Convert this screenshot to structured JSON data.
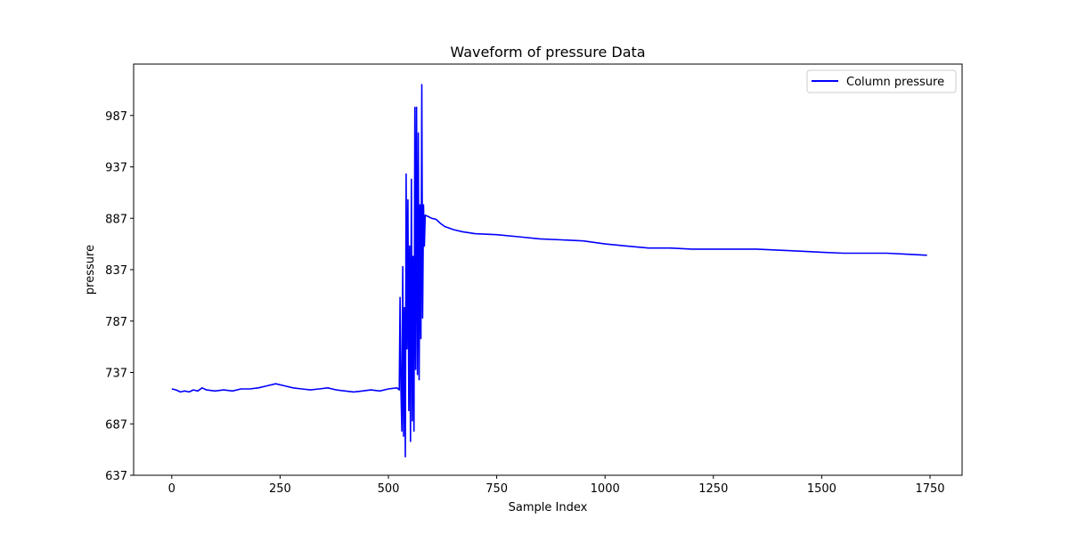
{
  "chart_data": {
    "type": "line",
    "title": "Waveform of pressure Data",
    "xlabel": "Sample Index",
    "ylabel": "pressure",
    "xlim": [
      -88,
      1824
    ],
    "ylim": [
      637,
      1037
    ],
    "xticks": [
      0,
      250,
      500,
      750,
      1000,
      1250,
      1500,
      1750
    ],
    "yticks": [
      637,
      687,
      737,
      787,
      837,
      887,
      937,
      987
    ],
    "grid": false,
    "legend_position": "top-right",
    "series": [
      {
        "name": "Column pressure",
        "color": "#0000ff",
        "points": [
          [
            0,
            721
          ],
          [
            10,
            720
          ],
          [
            20,
            718
          ],
          [
            30,
            719
          ],
          [
            40,
            718
          ],
          [
            50,
            720
          ],
          [
            60,
            719
          ],
          [
            70,
            722
          ],
          [
            80,
            720
          ],
          [
            100,
            719
          ],
          [
            120,
            720
          ],
          [
            140,
            719
          ],
          [
            160,
            721
          ],
          [
            180,
            721
          ],
          [
            200,
            722
          ],
          [
            220,
            724
          ],
          [
            240,
            726
          ],
          [
            260,
            724
          ],
          [
            280,
            722
          ],
          [
            300,
            721
          ],
          [
            320,
            720
          ],
          [
            340,
            721
          ],
          [
            360,
            722
          ],
          [
            380,
            720
          ],
          [
            400,
            719
          ],
          [
            420,
            718
          ],
          [
            440,
            719
          ],
          [
            460,
            720
          ],
          [
            480,
            719
          ],
          [
            500,
            721
          ],
          [
            520,
            722
          ],
          [
            525,
            720
          ],
          [
            527,
            810
          ],
          [
            529,
            720
          ],
          [
            531,
            680
          ],
          [
            533,
            840
          ],
          [
            535,
            675
          ],
          [
            537,
            800
          ],
          [
            539,
            655
          ],
          [
            541,
            930
          ],
          [
            543,
            760
          ],
          [
            545,
            905
          ],
          [
            547,
            700
          ],
          [
            549,
            860
          ],
          [
            551,
            670
          ],
          [
            553,
            925
          ],
          [
            555,
            690
          ],
          [
            557,
            850
          ],
          [
            559,
            680
          ],
          [
            561,
            995
          ],
          [
            563,
            740
          ],
          [
            565,
            995
          ],
          [
            567,
            735
          ],
          [
            569,
            970
          ],
          [
            571,
            730
          ],
          [
            573,
            900
          ],
          [
            575,
            770
          ],
          [
            577,
            1017
          ],
          [
            579,
            790
          ],
          [
            581,
            900
          ],
          [
            583,
            860
          ],
          [
            585,
            890
          ],
          [
            590,
            889
          ],
          [
            600,
            887
          ],
          [
            610,
            886
          ],
          [
            620,
            882
          ],
          [
            630,
            879
          ],
          [
            650,
            876
          ],
          [
            670,
            874
          ],
          [
            700,
            872
          ],
          [
            750,
            871
          ],
          [
            800,
            869
          ],
          [
            850,
            867
          ],
          [
            900,
            866
          ],
          [
            950,
            865
          ],
          [
            1000,
            862
          ],
          [
            1050,
            860
          ],
          [
            1100,
            858
          ],
          [
            1150,
            858
          ],
          [
            1200,
            857
          ],
          [
            1250,
            857
          ],
          [
            1300,
            857
          ],
          [
            1350,
            857
          ],
          [
            1400,
            856
          ],
          [
            1450,
            855
          ],
          [
            1500,
            854
          ],
          [
            1550,
            853
          ],
          [
            1600,
            853
          ],
          [
            1650,
            853
          ],
          [
            1700,
            852
          ],
          [
            1743,
            851
          ]
        ]
      }
    ]
  }
}
